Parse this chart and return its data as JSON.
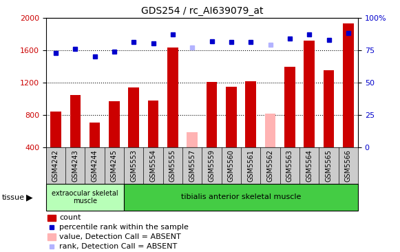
{
  "title": "GDS254 / rc_AI639079_at",
  "samples": [
    "GSM4242",
    "GSM4243",
    "GSM4244",
    "GSM4245",
    "GSM5553",
    "GSM5554",
    "GSM5555",
    "GSM5557",
    "GSM5559",
    "GSM5560",
    "GSM5561",
    "GSM5562",
    "GSM5563",
    "GSM5564",
    "GSM5565",
    "GSM5566"
  ],
  "bar_values": [
    840,
    1050,
    710,
    970,
    1140,
    980,
    1630,
    590,
    1210,
    1150,
    1220,
    820,
    1390,
    1720,
    1350,
    1930
  ],
  "bar_absent": [
    false,
    false,
    false,
    false,
    false,
    false,
    false,
    true,
    false,
    false,
    false,
    true,
    false,
    false,
    false,
    false
  ],
  "rank_values": [
    73,
    76,
    70,
    74,
    81,
    80,
    87,
    77,
    82,
    81,
    81,
    79,
    84,
    87,
    83,
    88
  ],
  "rank_absent": [
    false,
    false,
    false,
    false,
    false,
    false,
    false,
    true,
    false,
    false,
    false,
    true,
    false,
    false,
    false,
    false
  ],
  "bar_color_normal": "#cc0000",
  "bar_color_absent": "#ffb3b3",
  "rank_color_normal": "#0000cc",
  "rank_color_absent": "#b3b3ff",
  "ylim_left": [
    400,
    2000
  ],
  "ylim_right": [
    0,
    100
  ],
  "yticks_left": [
    400,
    800,
    1200,
    1600,
    2000
  ],
  "yticks_right": [
    0,
    25,
    50,
    75,
    100
  ],
  "ytick_labels_right": [
    "0",
    "25",
    "50",
    "75",
    "100%"
  ],
  "grid_lines": [
    800,
    1200,
    1600
  ],
  "n_extrao": 4,
  "tissue_extrao": "extraocular skeletal\nmuscle",
  "tissue_tibialis": "tibialis anterior skeletal muscle",
  "tissue_label": "tissue",
  "color_extrao": "#b8ffb8",
  "color_tibialis": "#44cc44",
  "xtick_bg": "#cccccc",
  "legend_items": [
    {
      "kind": "rect",
      "color": "#cc0000",
      "label": "count"
    },
    {
      "kind": "square",
      "color": "#0000cc",
      "label": "percentile rank within the sample"
    },
    {
      "kind": "rect",
      "color": "#ffb3b3",
      "label": "value, Detection Call = ABSENT"
    },
    {
      "kind": "square",
      "color": "#b3b3ff",
      "label": "rank, Detection Call = ABSENT"
    }
  ]
}
